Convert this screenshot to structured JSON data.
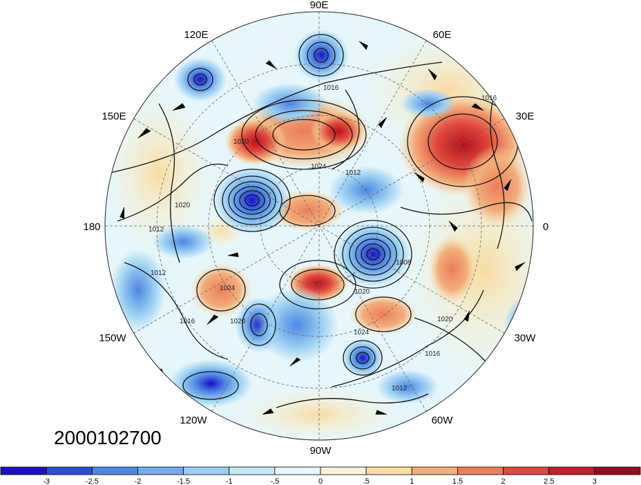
{
  "map": {
    "longitude_labels": [
      "90E",
      "60E",
      "30E",
      "0",
      "30W",
      "60W",
      "90W",
      "120W",
      "150W",
      "180",
      "150E",
      "120E"
    ],
    "display_labels": {
      "lon_90E": "90E",
      "lon_60E": "60E",
      "lon_30E": "30E",
      "lon_0": "0",
      "lon_30W": "30W",
      "lon_60W": "60W",
      "lon_90W": "90W",
      "lon_120W": "120W",
      "lon_150W": "150W",
      "lon_180": "180",
      "lon_150E": "150E",
      "lon_120E": "120E"
    },
    "contour_labels": [
      "1016",
      "1020",
      "1024",
      "1012",
      "1020",
      "1012",
      "1008",
      "1012",
      "1020",
      "1024",
      "1016",
      "1020",
      "1024",
      "1020",
      "1016",
      "1012",
      "1016"
    ],
    "date_label": "2000102700"
  },
  "colorbar": {
    "tick_labels": [
      "-3",
      "-2.5",
      "-2",
      "-1.5",
      "-1",
      "-.5",
      "0",
      ".5",
      "1",
      "1.5",
      "2",
      "2.5",
      "3"
    ],
    "colors": [
      "#1a10c9",
      "#2a4fd9",
      "#4e86e2",
      "#75abeb",
      "#9ad0f2",
      "#c4eaf8",
      "#e6f7fb",
      "#fbf4d6",
      "#f8dca0",
      "#f3ae7a",
      "#ec7d5a",
      "#e0473c",
      "#c51d2a",
      "#9d0a1d"
    ]
  }
}
